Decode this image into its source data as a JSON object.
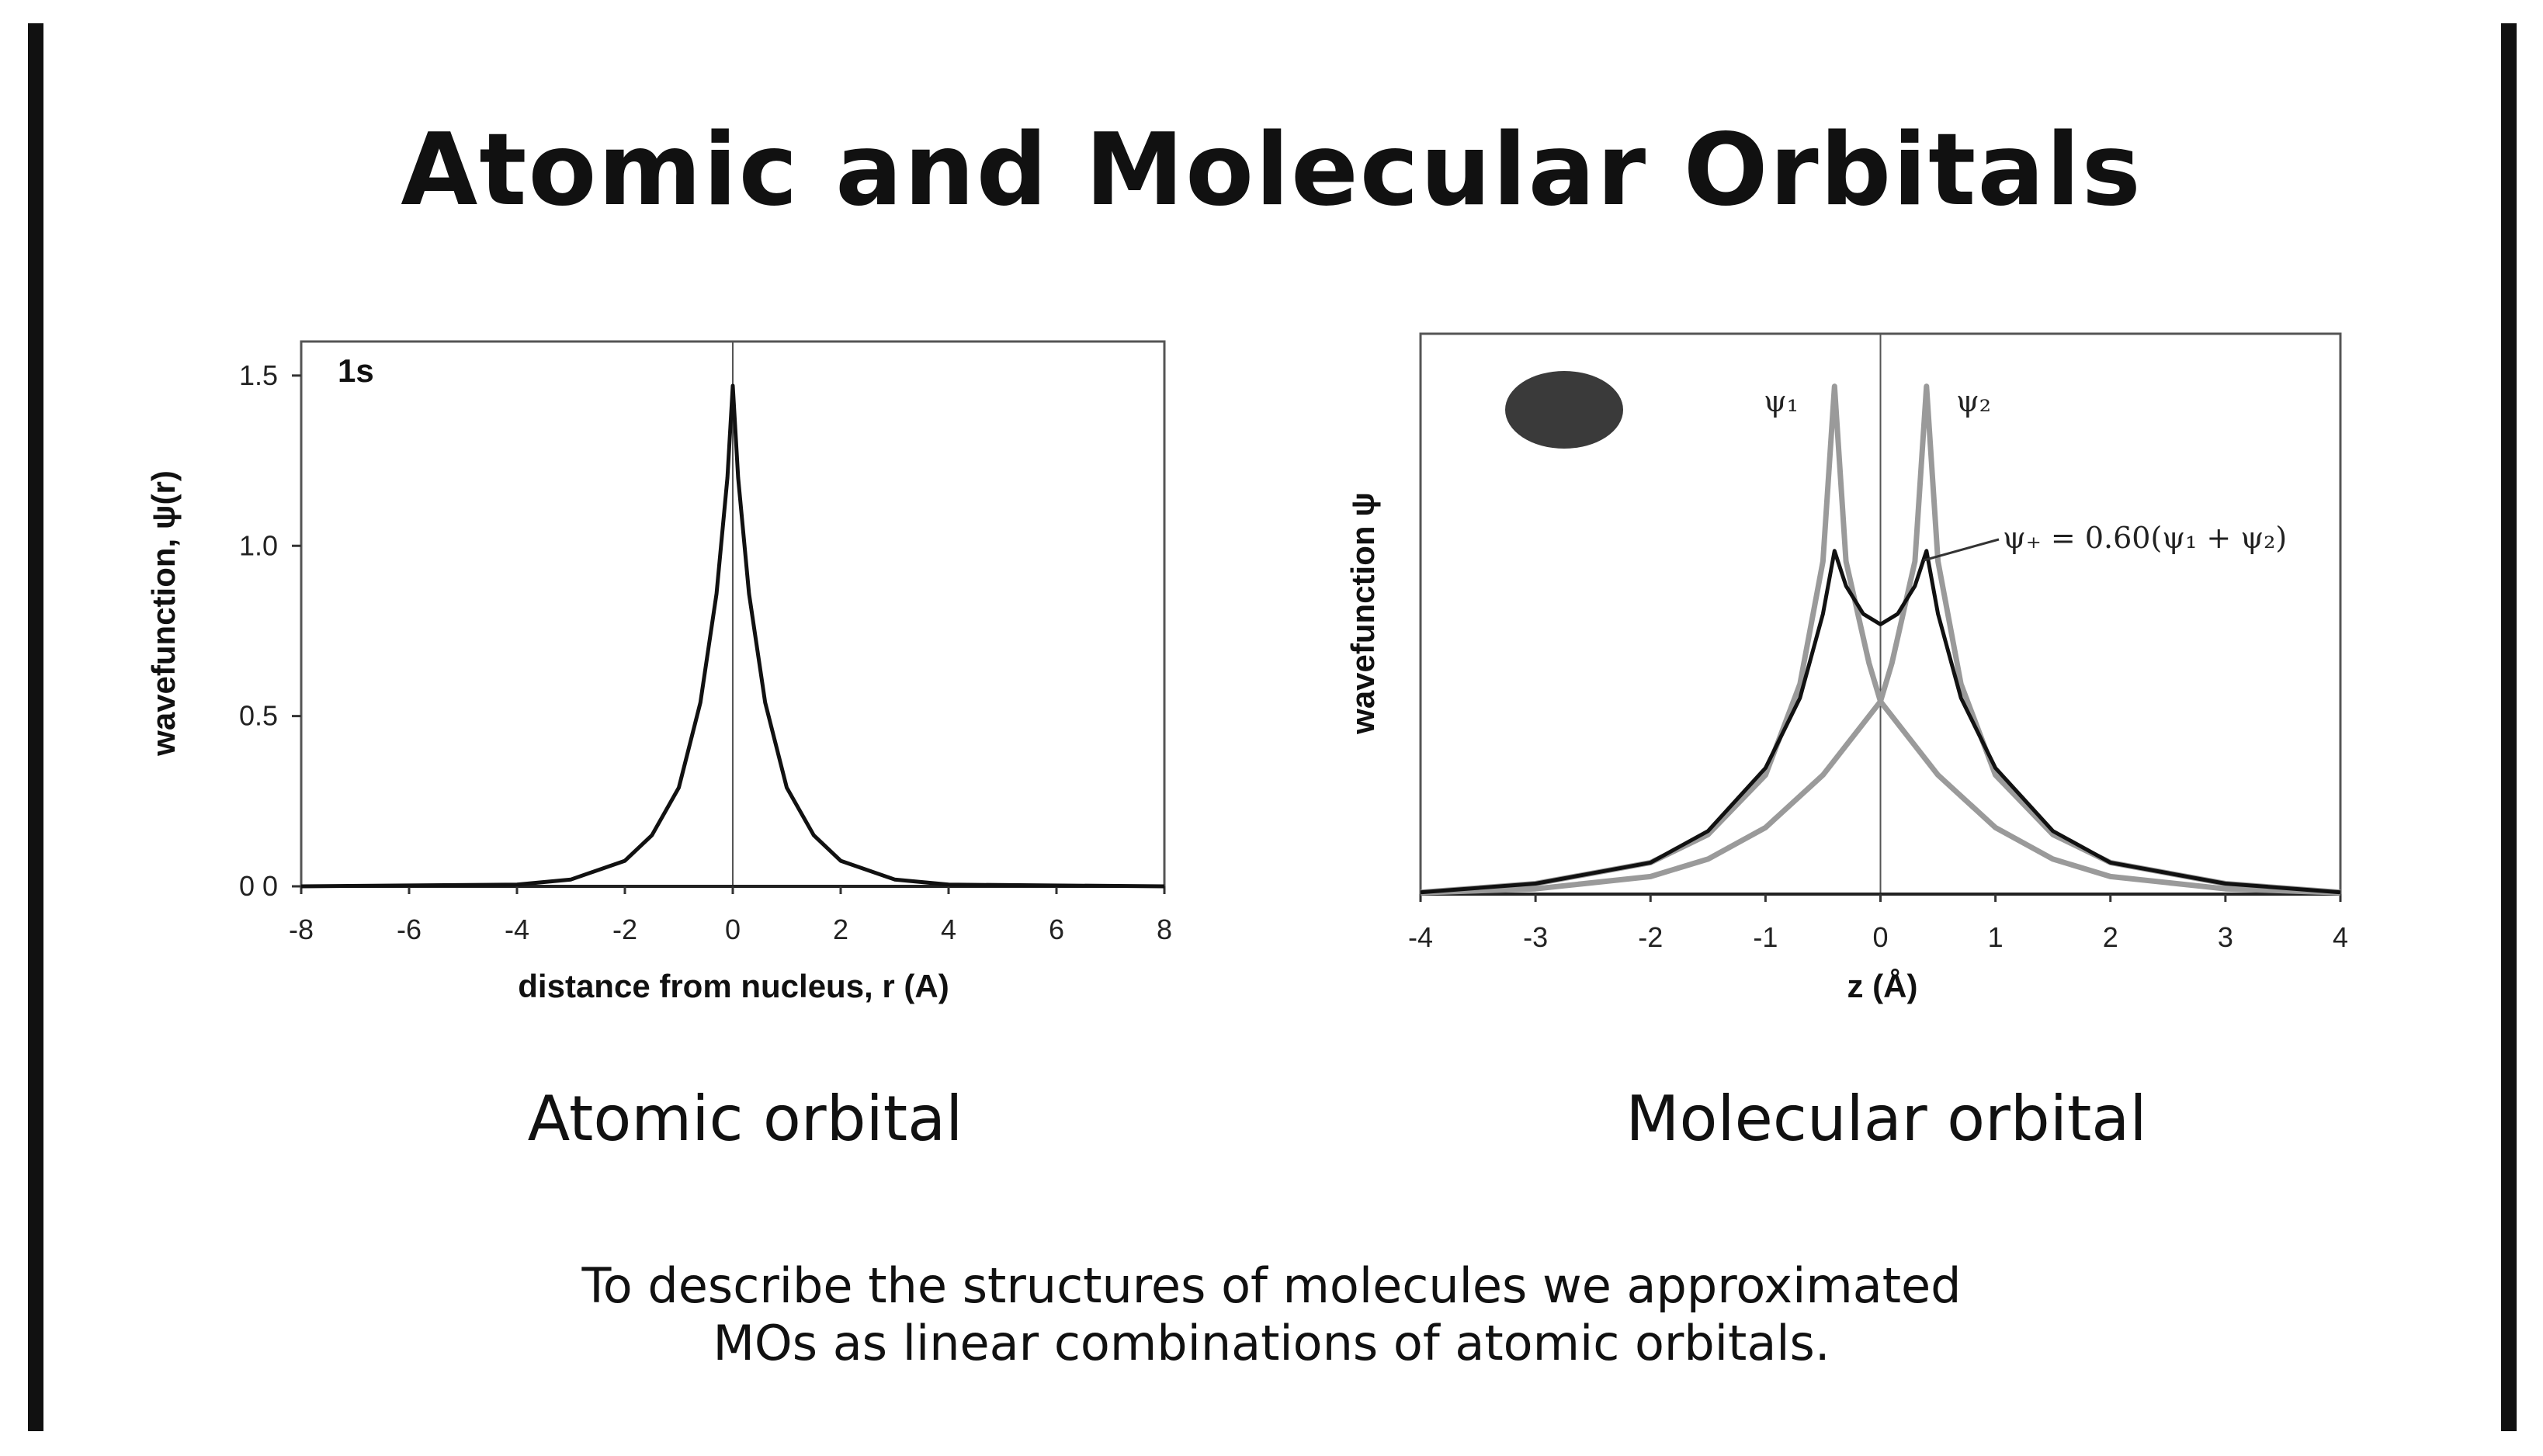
{
  "slide": {
    "title": "Atomic and Molecular Orbitals",
    "left_label": "Atomic orbital",
    "right_label": "Molecular orbital",
    "caption_lines": [
      "To describe the structures of molecules we approximated",
      "MOs as linear combinations of atomic orbitals."
    ]
  },
  "chart_data": [
    {
      "type": "line",
      "xlabel": "distance from nucleus, r (A)",
      "ylabel": "wavefunction, ψ(r)",
      "annotation": "1s",
      "xlim": [
        -8,
        8
      ],
      "ylim": [
        0,
        1.6
      ],
      "xticks": [
        -8,
        -6,
        -4,
        -2,
        0,
        2,
        4,
        6,
        8
      ],
      "xtick_labels": [
        "-8",
        "-6",
        "-4",
        "-2",
        "0",
        "2",
        "4",
        "6",
        "8"
      ],
      "yticks": [
        0,
        0.5,
        1.0,
        1.5
      ],
      "ytick_labels": [
        "0 0",
        "0.5",
        "1.0",
        "1.5"
      ],
      "series": [
        {
          "color": "#111111",
          "points": [
            [
              -8,
              0.0
            ],
            [
              -4,
              0.005
            ],
            [
              -3,
              0.02
            ],
            [
              -2,
              0.075
            ],
            [
              -1.5,
              0.15
            ],
            [
              -1,
              0.29
            ],
            [
              -0.6,
              0.54
            ],
            [
              -0.3,
              0.86
            ],
            [
              -0.1,
              1.2
            ],
            [
              0,
              1.47
            ],
            [
              0.1,
              1.2
            ],
            [
              0.3,
              0.86
            ],
            [
              0.6,
              0.54
            ],
            [
              1,
              0.29
            ],
            [
              1.5,
              0.15
            ],
            [
              2,
              0.075
            ],
            [
              3,
              0.02
            ],
            [
              4,
              0.005
            ],
            [
              8,
              0.0
            ]
          ]
        }
      ]
    },
    {
      "type": "line",
      "xlabel": "z (Å)",
      "ylabel": "wavefunction ψ",
      "xlim": [
        -4,
        4
      ],
      "ylim": [
        0,
        1.6
      ],
      "xticks": [
        -4,
        -3,
        -2,
        -1,
        0,
        1,
        2,
        3,
        4
      ],
      "xtick_labels": [
        "-4",
        "-3",
        "-2",
        "-1",
        "0",
        "1",
        "2",
        "3",
        "4"
      ],
      "annotations": [
        "ψ₁",
        "ψ₂",
        "ψ₊ = 0.60(ψ₁ + ψ₂)"
      ],
      "series": [
        {
          "name": "ψ₁",
          "color": "#9a9a9a",
          "points": [
            [
              -4,
              0.005
            ],
            [
              -3,
              0.03
            ],
            [
              -2,
              0.09
            ],
            [
              -1.5,
              0.17
            ],
            [
              -1,
              0.34
            ],
            [
              -0.7,
              0.6
            ],
            [
              -0.5,
              0.95
            ],
            [
              -0.4,
              1.45
            ],
            [
              -0.3,
              0.95
            ],
            [
              -0.1,
              0.66
            ],
            [
              0,
              0.55
            ],
            [
              0.5,
              0.34
            ],
            [
              1,
              0.19
            ],
            [
              1.5,
              0.1
            ],
            [
              2,
              0.05
            ],
            [
              3,
              0.015
            ],
            [
              4,
              0.004
            ]
          ]
        },
        {
          "name": "ψ₂",
          "color": "#9a9a9a",
          "points": [
            [
              -4,
              0.004
            ],
            [
              -3,
              0.015
            ],
            [
              -2,
              0.05
            ],
            [
              -1.5,
              0.1
            ],
            [
              -1,
              0.19
            ],
            [
              -0.5,
              0.34
            ],
            [
              0,
              0.55
            ],
            [
              0.1,
              0.66
            ],
            [
              0.3,
              0.95
            ],
            [
              0.4,
              1.45
            ],
            [
              0.5,
              0.95
            ],
            [
              0.7,
              0.6
            ],
            [
              1,
              0.34
            ],
            [
              1.5,
              0.17
            ],
            [
              2,
              0.09
            ],
            [
              3,
              0.03
            ],
            [
              4,
              0.005
            ]
          ]
        },
        {
          "name": "ψ₊",
          "color": "#111111",
          "points": [
            [
              -4,
              0.005
            ],
            [
              -3,
              0.03
            ],
            [
              -2,
              0.09
            ],
            [
              -1.5,
              0.18
            ],
            [
              -1,
              0.36
            ],
            [
              -0.7,
              0.56
            ],
            [
              -0.5,
              0.8
            ],
            [
              -0.4,
              0.98
            ],
            [
              -0.3,
              0.88
            ],
            [
              -0.15,
              0.8
            ],
            [
              0,
              0.77
            ],
            [
              0.15,
              0.8
            ],
            [
              0.3,
              0.88
            ],
            [
              0.4,
              0.98
            ],
            [
              0.5,
              0.8
            ],
            [
              0.7,
              0.56
            ],
            [
              1,
              0.36
            ],
            [
              1.5,
              0.18
            ],
            [
              2,
              0.09
            ],
            [
              3,
              0.03
            ],
            [
              4,
              0.005
            ]
          ]
        }
      ]
    }
  ]
}
